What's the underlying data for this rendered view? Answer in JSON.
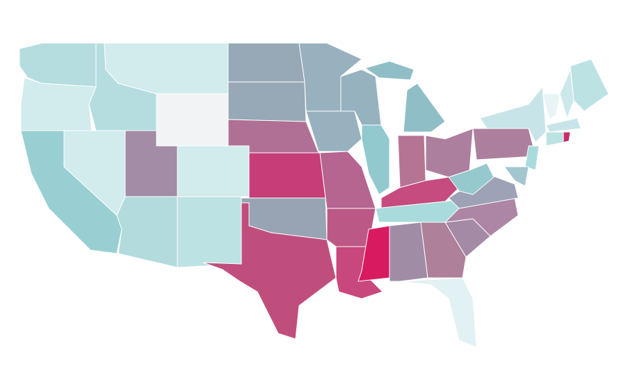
{
  "map": {
    "fills": [
      "#b5dde0",
      "#d2ebec",
      "#99cfd2",
      "#d2ebec",
      "#b5dde0",
      "#d2ebec",
      "#f2f3f5",
      "#a38ca6",
      "#d2ebec",
      "#b3dbde",
      "#bde2e4",
      "#97a8b6",
      "#97a8b6",
      "#b07095",
      "#c63d78",
      "#98a4b4",
      "#c04e7d",
      "#98b1bf",
      "#98b1bf",
      "#b66590",
      "#bb5886",
      "#c8487d",
      "#97b2bf",
      "#91c9cf",
      "#8fbec6",
      "#8fbec6",
      "#b67493",
      "#ad7f9e",
      "#c64b7f",
      "#a9dbdc",
      "#d81b60",
      "#a18ca6",
      "#ae8099",
      "#e2f1f3",
      "#a58aa6",
      "#ac86a4",
      "#9ea2b6",
      "#96c9cd",
      "#ad7f9e",
      "#c7e5e8",
      "#bde2e4",
      "#cde8ea",
      "#e8f4f5",
      "#c7e5e8",
      "#bde2e4",
      "#c62c6a",
      "#a9dbdc",
      "#a3c6d0"
    ]
  }
}
